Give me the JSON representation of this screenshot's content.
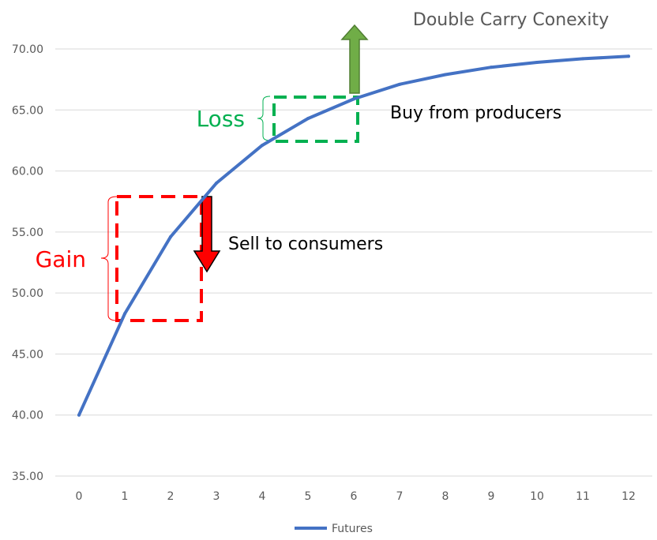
{
  "chart_data": {
    "type": "line",
    "title": "Double Carry Conexity",
    "xlabel": "",
    "ylabel": "",
    "x": [
      0,
      1,
      2,
      3,
      4,
      5,
      6,
      7,
      8,
      9,
      10,
      11,
      12
    ],
    "xlim": [
      0,
      12
    ],
    "ylim": [
      35,
      70
    ],
    "yticks": [
      "35.00",
      "40.00",
      "45.00",
      "50.00",
      "55.00",
      "60.00",
      "65.00",
      "70.00"
    ],
    "grid": true,
    "legend_position": "bottom",
    "series": [
      {
        "name": "Futures",
        "color": "#4472C4",
        "values": [
          40.0,
          48.3,
          54.6,
          59.0,
          62.1,
          64.3,
          65.9,
          67.1,
          67.9,
          68.5,
          68.9,
          69.2,
          69.4
        ]
      }
    ],
    "annotations": {
      "loss": {
        "label": "Loss",
        "color": "#00B050"
      },
      "gain": {
        "label": "Gain",
        "color": "#FF0000"
      },
      "buy": {
        "label": "Buy from producers",
        "arrow_color": "#70AD47"
      },
      "sell": {
        "label": "Sell to consumers",
        "arrow_color": "#FF0000"
      }
    }
  }
}
